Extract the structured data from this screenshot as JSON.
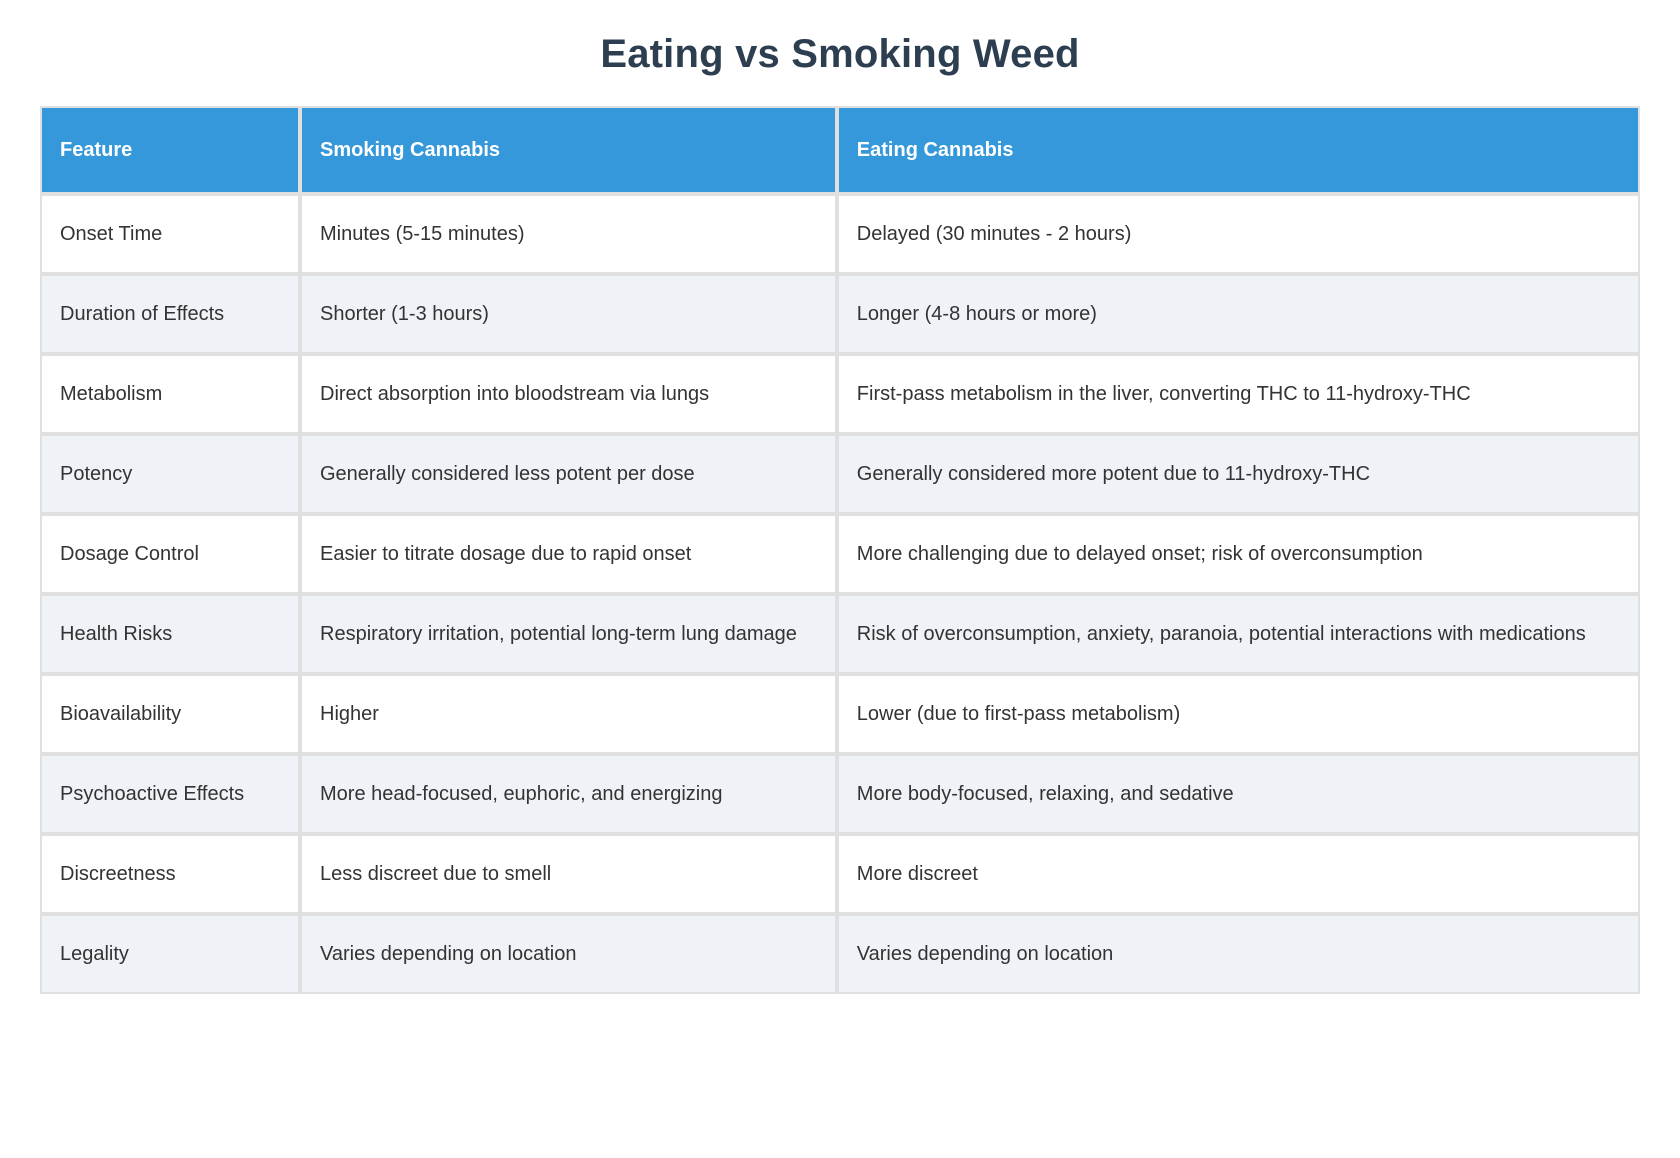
{
  "page": {
    "title": "Eating vs Smoking Weed"
  },
  "colors": {
    "header_bg": "#3498db",
    "header_text": "#ffffff",
    "title_text": "#2c3e50",
    "row_alt_bg": "#eff2f7",
    "row_bg": "#ffffff",
    "border": "#e0e0e0",
    "body_text": "#333333"
  },
  "table": {
    "columns": [
      "Feature",
      "Smoking Cannabis",
      "Eating Cannabis"
    ],
    "rows": [
      {
        "feature": "Onset Time",
        "smoking": "Minutes (5-15 minutes)",
        "eating": "Delayed (30 minutes - 2 hours)"
      },
      {
        "feature": "Duration of Effects",
        "smoking": "Shorter (1-3 hours)",
        "eating": "Longer (4-8 hours or more)"
      },
      {
        "feature": "Metabolism",
        "smoking": "Direct absorption into bloodstream via lungs",
        "eating": "First-pass metabolism in the liver, converting THC to 11-hydroxy-THC"
      },
      {
        "feature": "Potency",
        "smoking": "Generally considered less potent per dose",
        "eating": "Generally considered more potent due to 11-hydroxy-THC"
      },
      {
        "feature": "Dosage Control",
        "smoking": "Easier to titrate dosage due to rapid onset",
        "eating": "More challenging due to delayed onset; risk of overconsumption"
      },
      {
        "feature": "Health Risks",
        "smoking": "Respiratory irritation, potential long-term lung damage",
        "eating": "Risk of overconsumption, anxiety, paranoia, potential interactions with medications"
      },
      {
        "feature": "Bioavailability",
        "smoking": "Higher",
        "eating": "Lower (due to first-pass metabolism)"
      },
      {
        "feature": "Psychoactive Effects",
        "smoking": "More head-focused, euphoric, and energizing",
        "eating": "More body-focused, relaxing, and sedative"
      },
      {
        "feature": "Discreetness",
        "smoking": "Less discreet due to smell",
        "eating": "More discreet"
      },
      {
        "feature": "Legality",
        "smoking": "Varies depending on location",
        "eating": "Varies depending on location"
      }
    ]
  }
}
